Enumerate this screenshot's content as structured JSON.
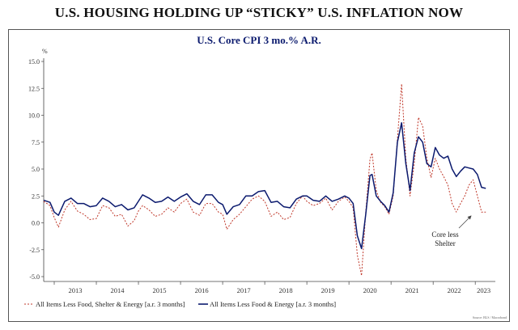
{
  "header": {
    "title": "U.S. HOUSING HOLDING UP “STICKY” U.S. INFLATION NOW"
  },
  "colors": {
    "core": "#0b1a6e",
    "ex_shelter": "#c0392b",
    "axis": "#444444"
  },
  "chart_data": {
    "type": "line",
    "title": "U.S. Core CPI 3 mo.% A.R.",
    "ylabel": "%",
    "xlabel": "",
    "ylim": [
      -5.0,
      15.0
    ],
    "xlim": [
      2012.75,
      2023.4
    ],
    "yticks": [
      "15.0",
      "12.5",
      "10.0",
      "7.5",
      "5.0",
      "2.5",
      "0.0",
      "-2.5",
      "-5.0"
    ],
    "xticks": [
      "2013",
      "2014",
      "2015",
      "2016",
      "2017",
      "2018",
      "2019",
      "2020",
      "2021",
      "2022",
      "2023"
    ],
    "grid": false,
    "legend_position": "bottom",
    "annotation": {
      "text_line1": "Core less",
      "text_line2": "Shelter"
    },
    "source_note": "Source: BLS / Macrobond",
    "series": [
      {
        "name": "All Items Less Food, Shelter & Energy [a.r. 3 months]",
        "style": "dashed",
        "color": "#c0392b",
        "x": [
          2012.75,
          2012.9,
          2013.0,
          2013.1,
          2013.25,
          2013.4,
          2013.55,
          2013.7,
          2013.85,
          2014.0,
          2014.15,
          2014.3,
          2014.45,
          2014.6,
          2014.75,
          2014.9,
          2015.0,
          2015.1,
          2015.25,
          2015.4,
          2015.55,
          2015.7,
          2015.85,
          2016.0,
          2016.15,
          2016.3,
          2016.45,
          2016.6,
          2016.75,
          2016.9,
          2017.0,
          2017.1,
          2017.25,
          2017.4,
          2017.55,
          2017.7,
          2017.85,
          2018.0,
          2018.15,
          2018.3,
          2018.45,
          2018.6,
          2018.75,
          2018.9,
          2019.0,
          2019.15,
          2019.3,
          2019.45,
          2019.6,
          2019.75,
          2019.9,
          2020.0,
          2020.1,
          2020.2,
          2020.3,
          2020.4,
          2020.5,
          2020.55,
          2020.65,
          2020.75,
          2020.85,
          2020.95,
          2021.05,
          2021.15,
          2021.25,
          2021.35,
          2021.45,
          2021.55,
          2021.65,
          2021.75,
          2021.85,
          2021.95,
          2022.05,
          2022.15,
          2022.25,
          2022.35,
          2022.45,
          2022.55,
          2022.65,
          2022.75,
          2022.85,
          2022.95,
          2023.05,
          2023.15,
          2023.25
        ],
        "y": [
          2.0,
          1.6,
          0.5,
          -0.4,
          1.2,
          2.0,
          1.1,
          0.8,
          0.3,
          0.4,
          1.6,
          1.4,
          0.6,
          0.8,
          -0.3,
          0.2,
          1.1,
          1.6,
          1.2,
          0.6,
          0.8,
          1.4,
          1.0,
          1.8,
          2.2,
          1.0,
          0.7,
          1.8,
          1.8,
          1.0,
          0.8,
          -0.6,
          0.3,
          0.8,
          1.5,
          2.2,
          2.5,
          2.0,
          0.6,
          1.0,
          0.3,
          0.5,
          1.8,
          2.5,
          2.0,
          1.6,
          1.8,
          2.3,
          1.2,
          2.0,
          2.4,
          2.0,
          1.4,
          -3.0,
          -4.9,
          1.0,
          5.9,
          6.5,
          3.0,
          1.9,
          1.5,
          0.8,
          2.5,
          7.8,
          12.9,
          6.0,
          2.5,
          5.5,
          9.8,
          9.0,
          6.0,
          4.2,
          6.0,
          5.0,
          4.3,
          3.5,
          1.8,
          1.0,
          1.8,
          2.5,
          3.5,
          4.0,
          2.5,
          1.0,
          1.0
        ]
      },
      {
        "name": "All Items Less Food & Energy [a.r. 3 months]",
        "style": "solid",
        "color": "#0b1a6e",
        "x": [
          2012.75,
          2012.9,
          2013.0,
          2013.1,
          2013.25,
          2013.4,
          2013.55,
          2013.7,
          2013.85,
          2014.0,
          2014.15,
          2014.3,
          2014.45,
          2014.6,
          2014.75,
          2014.9,
          2015.0,
          2015.1,
          2015.25,
          2015.4,
          2015.55,
          2015.7,
          2015.85,
          2016.0,
          2016.15,
          2016.3,
          2016.45,
          2016.6,
          2016.75,
          2016.9,
          2017.0,
          2017.1,
          2017.25,
          2017.4,
          2017.55,
          2017.7,
          2017.85,
          2018.0,
          2018.15,
          2018.3,
          2018.45,
          2018.6,
          2018.75,
          2018.9,
          2019.0,
          2019.15,
          2019.3,
          2019.45,
          2019.6,
          2019.75,
          2019.9,
          2020.0,
          2020.1,
          2020.2,
          2020.3,
          2020.4,
          2020.5,
          2020.55,
          2020.65,
          2020.75,
          2020.85,
          2020.95,
          2021.05,
          2021.15,
          2021.25,
          2021.35,
          2021.45,
          2021.55,
          2021.65,
          2021.75,
          2021.85,
          2021.95,
          2022.05,
          2022.15,
          2022.25,
          2022.35,
          2022.45,
          2022.55,
          2022.65,
          2022.75,
          2022.85,
          2022.95,
          2023.05,
          2023.15,
          2023.25
        ],
        "y": [
          2.1,
          1.9,
          1.0,
          0.7,
          2.0,
          2.3,
          1.8,
          1.8,
          1.5,
          1.6,
          2.3,
          2.0,
          1.5,
          1.7,
          1.2,
          1.4,
          2.0,
          2.6,
          2.3,
          1.9,
          2.0,
          2.4,
          2.0,
          2.4,
          2.7,
          2.0,
          1.7,
          2.6,
          2.6,
          1.9,
          1.7,
          0.8,
          1.5,
          1.7,
          2.5,
          2.5,
          2.9,
          3.0,
          1.9,
          2.0,
          1.5,
          1.4,
          2.2,
          2.5,
          2.5,
          2.1,
          2.0,
          2.5,
          2.0,
          2.2,
          2.5,
          2.3,
          1.8,
          -1.2,
          -2.4,
          0.8,
          4.4,
          4.5,
          2.5,
          2.0,
          1.6,
          1.0,
          2.8,
          7.5,
          9.3,
          5.5,
          3.0,
          6.5,
          8.0,
          7.5,
          5.5,
          5.2,
          7.0,
          6.3,
          6.0,
          6.2,
          5.0,
          4.3,
          4.8,
          5.2,
          5.1,
          5.0,
          4.5,
          3.3,
          3.2
        ]
      }
    ]
  }
}
